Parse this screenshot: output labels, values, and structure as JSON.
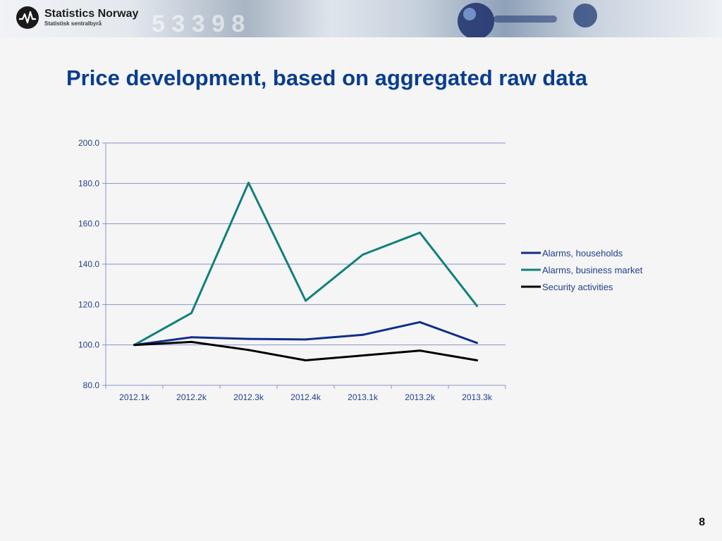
{
  "header": {
    "org_name": "Statistics Norway",
    "org_subtitle": "Statistisk sentralbyrå",
    "banner_digits": "5 3 3 9 8"
  },
  "slide": {
    "title": "Price development, based on aggregated raw data",
    "page_number": "8"
  },
  "colors": {
    "title": "#0a3d8f",
    "households": "#0d2f8a",
    "business": "#12807a",
    "security": "#000000",
    "grid": "#8c92c6",
    "axis_text": "#1f3f8a"
  },
  "chart_data": {
    "type": "line",
    "title": "",
    "xlabel": "",
    "ylabel": "",
    "categories": [
      "2012.1k",
      "2012.2k",
      "2012.3k",
      "2012.4k",
      "2013.1k",
      "2013.2k",
      "2013.3k"
    ],
    "series": [
      {
        "name": "Alarms, households",
        "color": "#0d2f8a",
        "values": [
          100.0,
          103.8,
          103.0,
          102.7,
          105.0,
          111.3,
          101.0
        ]
      },
      {
        "name": "Alarms, business market",
        "color": "#12807a",
        "values": [
          100.0,
          115.8,
          180.3,
          121.9,
          144.7,
          155.6,
          119.3
        ]
      },
      {
        "name": "Security activities",
        "color": "#000000",
        "values": [
          100.0,
          101.5,
          97.5,
          92.4,
          94.8,
          97.2,
          92.4
        ]
      }
    ],
    "ylim": [
      80,
      200
    ],
    "yticks": [
      "80.0",
      "100.0",
      "120.0",
      "140.0",
      "160.0",
      "180.0",
      "200.0"
    ],
    "grid": true,
    "legend_position": "right"
  }
}
